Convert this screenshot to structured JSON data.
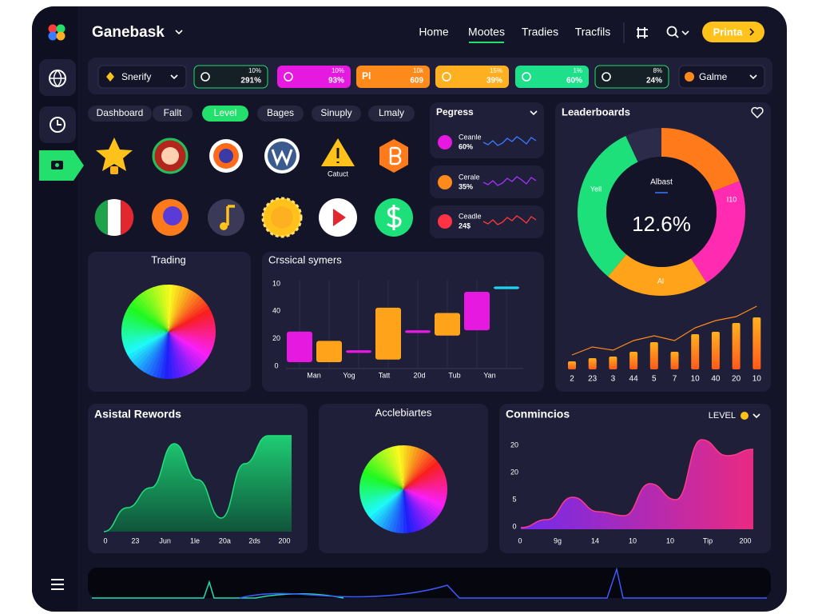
{
  "header": {
    "brand": "Ganebask",
    "nav": [
      "Home",
      "Mootes",
      "Tradies",
      "Tracfils"
    ],
    "active_nav": 1,
    "button": "Printa"
  },
  "ticker_bar": {
    "select": "Snerify",
    "items": [
      {
        "top": "10%",
        "bottom": "291%",
        "color": "#141f26",
        "accent": "#22e06b"
      },
      {
        "top": "10%",
        "bottom": "93%",
        "color": "#e619e0",
        "accent": "#ffffff"
      },
      {
        "icon_text": "Pl",
        "top": "10k",
        "bottom": "609",
        "color": "#ff8a1c",
        "accent": "#ffffff"
      },
      {
        "top": "15%",
        "bottom": "39%",
        "color": "#ffb020",
        "accent": "#ffffff"
      },
      {
        "top": "1%",
        "bottom": "60%",
        "color": "#1fe08a",
        "accent": "#ffffff"
      },
      {
        "top": "8%",
        "bottom": "24%",
        "color": "#141f26",
        "accent": "#22e06b"
      }
    ],
    "game": "Galme"
  },
  "tabs": {
    "items": [
      "Dashboard",
      "Fallt",
      "Level",
      "Bages",
      "Sinuply",
      "Lmaly"
    ],
    "active": 2
  },
  "icons": {
    "label": "Catuct"
  },
  "progress": {
    "title": "Pegress",
    "items": [
      {
        "label": "Ceanle",
        "value": "60%",
        "color": "#e619e0",
        "line_color": "#3a7bff"
      },
      {
        "label": "Cerale",
        "value": "35%",
        "color": "#ff8a1c",
        "line_color": "#a533ff"
      },
      {
        "label": "Ceadle",
        "value": "24$",
        "color": "#ff3344",
        "line_color": "#ff3b3b"
      }
    ]
  },
  "leaderboards": {
    "title": "Leaderboards",
    "center_label": "Albast",
    "center_value": "12.6%",
    "segment_labels": [
      "Yell",
      "I10",
      "Al"
    ],
    "segments": [
      {
        "value": 19,
        "color": "#ff7a1a"
      },
      {
        "value": 22,
        "color": "#ff2bb0"
      },
      {
        "value": 20,
        "color": "#ffa41a"
      },
      {
        "value": 32,
        "color": "#1ee07a"
      },
      {
        "value": 7,
        "color": "#2c2c4a"
      }
    ],
    "bars": {
      "categories": [
        "2",
        "23",
        "3",
        "44",
        "5",
        "7",
        "10",
        "40",
        "20",
        "10"
      ],
      "values": [
        10,
        14,
        16,
        22,
        34,
        22,
        44,
        47,
        58,
        65
      ],
      "ylim": [
        0,
        70
      ]
    }
  },
  "trading": {
    "title": "Trading"
  },
  "crssical": {
    "title": "Crssical symers",
    "y_labels": [
      "10",
      "40",
      "20",
      "0"
    ],
    "x_labels": [
      "Man",
      "Yog",
      "Tatt",
      "20d",
      "Tub",
      "Yan"
    ],
    "ylim": [
      0,
      62
    ],
    "candles": [
      {
        "low": 3,
        "high": 26,
        "color": "#e619e0"
      },
      {
        "low": 3,
        "high": 19,
        "color": "#ffa41a"
      },
      {
        "low": 10,
        "high": 12,
        "color": "#e619e0"
      },
      {
        "low": 5,
        "high": 44,
        "color": "#ffa41a"
      },
      {
        "low": 25,
        "high": 27,
        "color": "#e619e0"
      },
      {
        "low": 23,
        "high": 40,
        "color": "#ffa41a"
      },
      {
        "low": 27,
        "high": 56,
        "color": "#e619e0"
      },
      {
        "low": 58,
        "high": 60,
        "color": "#22d3ee"
      }
    ]
  },
  "rewards": {
    "title": "Asistal Rewords",
    "x_labels": [
      "0",
      "23",
      "Jun",
      "1le",
      "20a",
      "2ds",
      "200"
    ],
    "values": [
      0,
      30,
      55,
      110,
      65,
      17,
      85,
      120,
      120
    ],
    "ylim": [
      0,
      130
    ]
  },
  "acclebiartes": {
    "title": "Acclebiartes"
  },
  "conmincios": {
    "title": "Conmincios",
    "toggle": "LEVEL",
    "y_labels": [
      "20",
      "20",
      "5",
      "0"
    ],
    "x_labels": [
      "0",
      "9g",
      "14",
      "10",
      "10",
      "Tip",
      "200"
    ],
    "values": [
      2,
      12,
      40,
      22,
      17,
      57,
      37,
      112,
      92,
      100
    ],
    "ylim": [
      0,
      120
    ]
  }
}
